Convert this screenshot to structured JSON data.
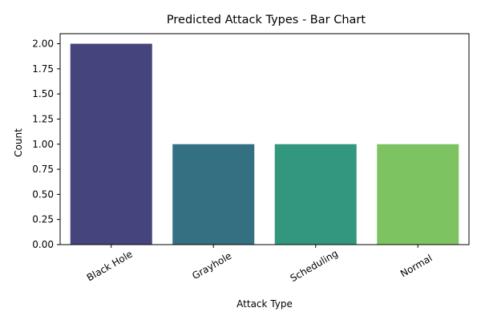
{
  "chart_data": {
    "type": "bar",
    "title": "Predicted Attack Types - Bar Chart",
    "xlabel": "Attack Type",
    "ylabel": "Count",
    "categories": [
      "Black Hole",
      "Grayhole",
      "Scheduling",
      "Normal"
    ],
    "values": [
      2,
      1,
      1,
      1
    ],
    "colors": [
      "#46447c",
      "#337082",
      "#32977d",
      "#7ec362"
    ],
    "ylim": [
      0,
      2.1
    ],
    "yticks": [
      0,
      0.25,
      0.5,
      0.75,
      1.0,
      1.25,
      1.5,
      1.75,
      2.0
    ],
    "ytick_labels": [
      "0.00",
      "0.25",
      "0.50",
      "0.75",
      "1.00",
      "1.25",
      "1.50",
      "1.75",
      "2.00"
    ],
    "grid": false,
    "legend": "none"
  }
}
